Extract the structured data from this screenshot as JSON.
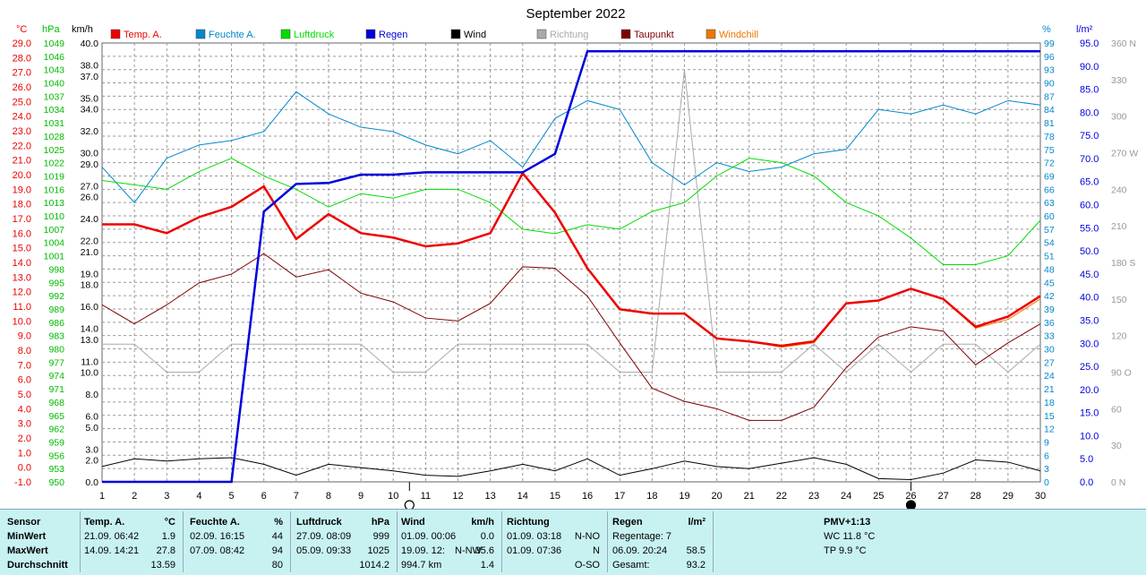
{
  "title": "September 2022",
  "colors": {
    "temp": "#ee0000",
    "humidity": "#0088cc",
    "pressure": "#00dd00",
    "rain": "#0000dd",
    "wind": "#000000",
    "direction": "#aaaaaa",
    "dewpoint": "#800000",
    "windchill": "#ee7700",
    "grid": "#999999",
    "panel": "#c8f2f2"
  },
  "units": {
    "temp": "°C",
    "pressure": "hPa",
    "wind": "km/h",
    "humidity": "%",
    "rain": "l/m²"
  },
  "chart_data": {
    "type": "line",
    "title": "September 2022",
    "x": [
      1,
      2,
      3,
      4,
      5,
      6,
      7,
      8,
      9,
      10,
      11,
      12,
      13,
      14,
      15,
      16,
      17,
      18,
      19,
      20,
      21,
      22,
      23,
      24,
      25,
      26,
      27,
      28,
      29,
      30
    ],
    "x_ticks": [
      "1",
      "2",
      "3",
      "4",
      "5",
      "6",
      "7",
      "8",
      "9",
      "10",
      "11",
      "12",
      "13",
      "14",
      "15",
      "16",
      "17",
      "18",
      "19",
      "20",
      "21",
      "22",
      "23",
      "24",
      "25",
      "26",
      "27",
      "28",
      "29",
      "30"
    ],
    "axes": {
      "temp": {
        "label": "°C",
        "range": [
          -1.0,
          29.0
        ],
        "ticks": [
          "29.0",
          "28.0",
          "27.0",
          "26.0",
          "25.0",
          "24.0",
          "23.0",
          "22.0",
          "21.0",
          "20.0",
          "19.0",
          "18.0",
          "17.0",
          "16.0",
          "15.0",
          "14.0",
          "13.0",
          "12.0",
          "11.0",
          "10.0",
          "9.0",
          "8.0",
          "7.0",
          "6.0",
          "5.0",
          "4.0",
          "3.0",
          "2.0",
          "1.0",
          "0.0",
          "-1.0"
        ]
      },
      "pressure": {
        "label": "hPa",
        "range": [
          950,
          1049
        ],
        "ticks": [
          "1049",
          "1046",
          "1043",
          "1040",
          "1037",
          "1034",
          "1031",
          "1028",
          "1025",
          "1022",
          "1019",
          "1016",
          "1013",
          "1010",
          "1007",
          "1004",
          "1001",
          "998",
          "995",
          "992",
          "989",
          "986",
          "983",
          "980",
          "977",
          "974",
          "971",
          "968",
          "965",
          "962",
          "959",
          "956",
          "953",
          "950"
        ]
      },
      "wind": {
        "label": "km/h",
        "range": [
          0,
          40
        ],
        "ticks": [
          "40.0",
          "38.0",
          "37.0",
          "35.0",
          "34.0",
          "32.0",
          "30.0",
          "29.0",
          "27.0",
          "26.0",
          "24.0",
          "22.0",
          "21.0",
          "19.0",
          "18.0",
          "16.0",
          "14.0",
          "13.0",
          "11.0",
          "10.0",
          "8.0",
          "6.0",
          "5.0",
          "3.0",
          "2.0",
          "0.0"
        ]
      },
      "humidity": {
        "label": "%",
        "range": [
          0,
          99
        ],
        "ticks": [
          "99",
          "96",
          "93",
          "90",
          "87",
          "84",
          "81",
          "78",
          "75",
          "72",
          "69",
          "66",
          "63",
          "60",
          "57",
          "54",
          "51",
          "48",
          "45",
          "42",
          "39",
          "36",
          "33",
          "30",
          "27",
          "24",
          "21",
          "18",
          "15",
          "12",
          "9",
          "6",
          "3",
          "0"
        ]
      },
      "rain": {
        "label": "l/m²",
        "range": [
          0,
          95
        ],
        "ticks": [
          "95.0",
          "90.0",
          "85.0",
          "80.0",
          "75.0",
          "70.0",
          "65.0",
          "60.0",
          "55.0",
          "50.0",
          "45.0",
          "40.0",
          "35.0",
          "30.0",
          "25.0",
          "20.0",
          "15.0",
          "10.0",
          "5.0",
          "0.0"
        ]
      },
      "direction": {
        "range": [
          0,
          360
        ],
        "ticks": [
          {
            "value": 360,
            "label": "360 N"
          },
          {
            "value": 330,
            "label": "330"
          },
          {
            "value": 300,
            "label": "300"
          },
          {
            "value": 270,
            "label": "270 W"
          },
          {
            "value": 240,
            "label": "240"
          },
          {
            "value": 210,
            "label": "210"
          },
          {
            "value": 180,
            "label": "180 S"
          },
          {
            "value": 150,
            "label": "150"
          },
          {
            "value": 120,
            "label": "120"
          },
          {
            "value": 90,
            "label": "90 O"
          },
          {
            "value": 60,
            "label": "60"
          },
          {
            "value": 30,
            "label": "30"
          },
          {
            "value": 0,
            "label": "0 N"
          }
        ]
      }
    },
    "series": [
      {
        "name": "Temp. A.",
        "key": "temp",
        "axis": "temp",
        "width": 2.5,
        "values": [
          16.6,
          16.6,
          16.0,
          17.1,
          17.8,
          19.2,
          15.6,
          17.3,
          16.0,
          15.7,
          15.1,
          15.3,
          16.0,
          20.1,
          17.4,
          13.6,
          10.8,
          10.5,
          10.5,
          8.8,
          8.6,
          8.3,
          8.6,
          11.2,
          11.4,
          12.2,
          11.5,
          9.6,
          10.3,
          11.7
        ]
      },
      {
        "name": "Feuchte A.",
        "key": "humidity",
        "axis": "humidity",
        "width": 1,
        "values": [
          71,
          63,
          73,
          76,
          77,
          79,
          88,
          83,
          80,
          79,
          76,
          74,
          77,
          71,
          82,
          86,
          84,
          72,
          67,
          72,
          70,
          71,
          74,
          75,
          84,
          83,
          85,
          83,
          86,
          85
        ]
      },
      {
        "name": "Luftdruck",
        "key": "pressure",
        "axis": "pressure",
        "width": 1,
        "values": [
          1018,
          1017,
          1016,
          1020,
          1023,
          1019,
          1016,
          1012,
          1015,
          1014,
          1016,
          1016,
          1013,
          1007,
          1006,
          1008,
          1007,
          1011,
          1013,
          1019,
          1023,
          1022,
          1019,
          1013,
          1010,
          1005,
          999,
          999,
          1001,
          1009
        ]
      },
      {
        "name": "Regen",
        "key": "rain",
        "axis": "rain",
        "width": 2.5,
        "values": [
          0,
          0,
          0,
          0,
          0,
          58.5,
          64.5,
          64.7,
          66.5,
          66.5,
          67.0,
          67.0,
          67.0,
          67.0,
          71.0,
          93.2,
          93.2,
          93.2,
          93.2,
          93.2,
          93.2,
          93.2,
          93.2,
          93.2,
          93.2,
          93.2,
          93.2,
          93.2,
          93.2,
          93.2
        ]
      },
      {
        "name": "Wind",
        "key": "wind",
        "axis": "wind",
        "width": 1,
        "values": [
          1.4,
          2.1,
          1.9,
          2.1,
          2.2,
          1.6,
          0.6,
          1.6,
          1.3,
          1.0,
          0.6,
          0.5,
          1.0,
          1.6,
          1.0,
          2.1,
          0.6,
          1.2,
          1.9,
          1.4,
          1.2,
          1.7,
          2.2,
          1.6,
          0.3,
          0.2,
          0.8,
          2.0,
          1.8,
          1.0
        ]
      },
      {
        "name": "Richtung",
        "key": "direction",
        "axis": "direction",
        "width": 1,
        "values": [
          113,
          113,
          90,
          90,
          113,
          113,
          113,
          113,
          113,
          90,
          90,
          113,
          113,
          113,
          113,
          113,
          90,
          90,
          338,
          90,
          90,
          90,
          113,
          90,
          113,
          90,
          113,
          113,
          90,
          113
        ]
      },
      {
        "name": "Taupunkt",
        "key": "dewpoint",
        "axis": "temp",
        "width": 1,
        "values": [
          11.1,
          9.8,
          11.1,
          12.6,
          13.2,
          14.6,
          13.0,
          13.5,
          11.9,
          11.3,
          10.2,
          10.0,
          11.2,
          13.7,
          13.6,
          11.7,
          8.5,
          5.4,
          4.5,
          4.0,
          3.2,
          3.2,
          4.1,
          6.8,
          8.9,
          9.6,
          9.3,
          7.0,
          8.5,
          9.8
        ]
      },
      {
        "name": "Windchill",
        "key": "windchill",
        "axis": "temp",
        "width": 1,
        "values": [
          16.6,
          16.6,
          16.0,
          17.1,
          17.8,
          19.2,
          15.6,
          17.3,
          16.0,
          15.7,
          15.1,
          15.3,
          16.0,
          20.1,
          17.4,
          13.6,
          10.8,
          10.5,
          10.5,
          8.8,
          8.6,
          8.2,
          8.5,
          11.2,
          11.4,
          12.2,
          11.5,
          9.5,
          10.1,
          11.5
        ]
      }
    ],
    "legend_position": "top",
    "grid": true,
    "moon_phases": [
      {
        "day": 10.5,
        "phase": "full-moon"
      },
      {
        "day": 26,
        "phase": "new-moon"
      }
    ]
  },
  "stats": {
    "sensor": {
      "title": "Sensor",
      "min": "MinWert",
      "max": "MaxWert",
      "avg": "Durchschnitt"
    },
    "temp": {
      "title": "Temp. A.",
      "unit": "°C",
      "min_time": "21.09.  06:42",
      "min_val": "1.9",
      "max_time": "14.09.  14:21",
      "max_val": "27.8",
      "avg": "13.59"
    },
    "humidity": {
      "title": "Feuchte A.",
      "unit": "%",
      "min_time": "02.09.  16:15",
      "min_val": "44",
      "max_time": "07.09.  08:42",
      "max_val": "94",
      "avg": "80"
    },
    "pressure": {
      "title": "Luftdruck",
      "unit": "hPa",
      "min_time": "27.09.  08:09",
      "min_val": "999",
      "max_time": "05.09.  09:33",
      "max_val": "1025",
      "avg": "1014.2"
    },
    "wind": {
      "title": "Wind",
      "unit": "km/h",
      "min_time": "01.09.  00:06",
      "min_val": "0.0",
      "max_time": "19.09.  12:",
      "max_dir": "N-NW",
      "max_val": "35.6",
      "distance": "994.7 km",
      "avg": "1.4"
    },
    "direction": {
      "title": "Richtung",
      "min_time": "01.09.  03:18",
      "min_val": "N-NO",
      "max_time": "01.09.  07:36",
      "max_val": "N",
      "avg": "O-SO"
    },
    "rain": {
      "title": "Regen",
      "unit": "l/m²",
      "days_label": "Regentage: 7",
      "max_time": "06.09.  20:24",
      "max_val": "58.5",
      "total_label": "Gesamt:",
      "total_val": "93.2"
    },
    "pmv": {
      "title": "PMV+1:13",
      "wc": "WC 11.8 °C",
      "tp": "TP 9.9 °C"
    }
  }
}
